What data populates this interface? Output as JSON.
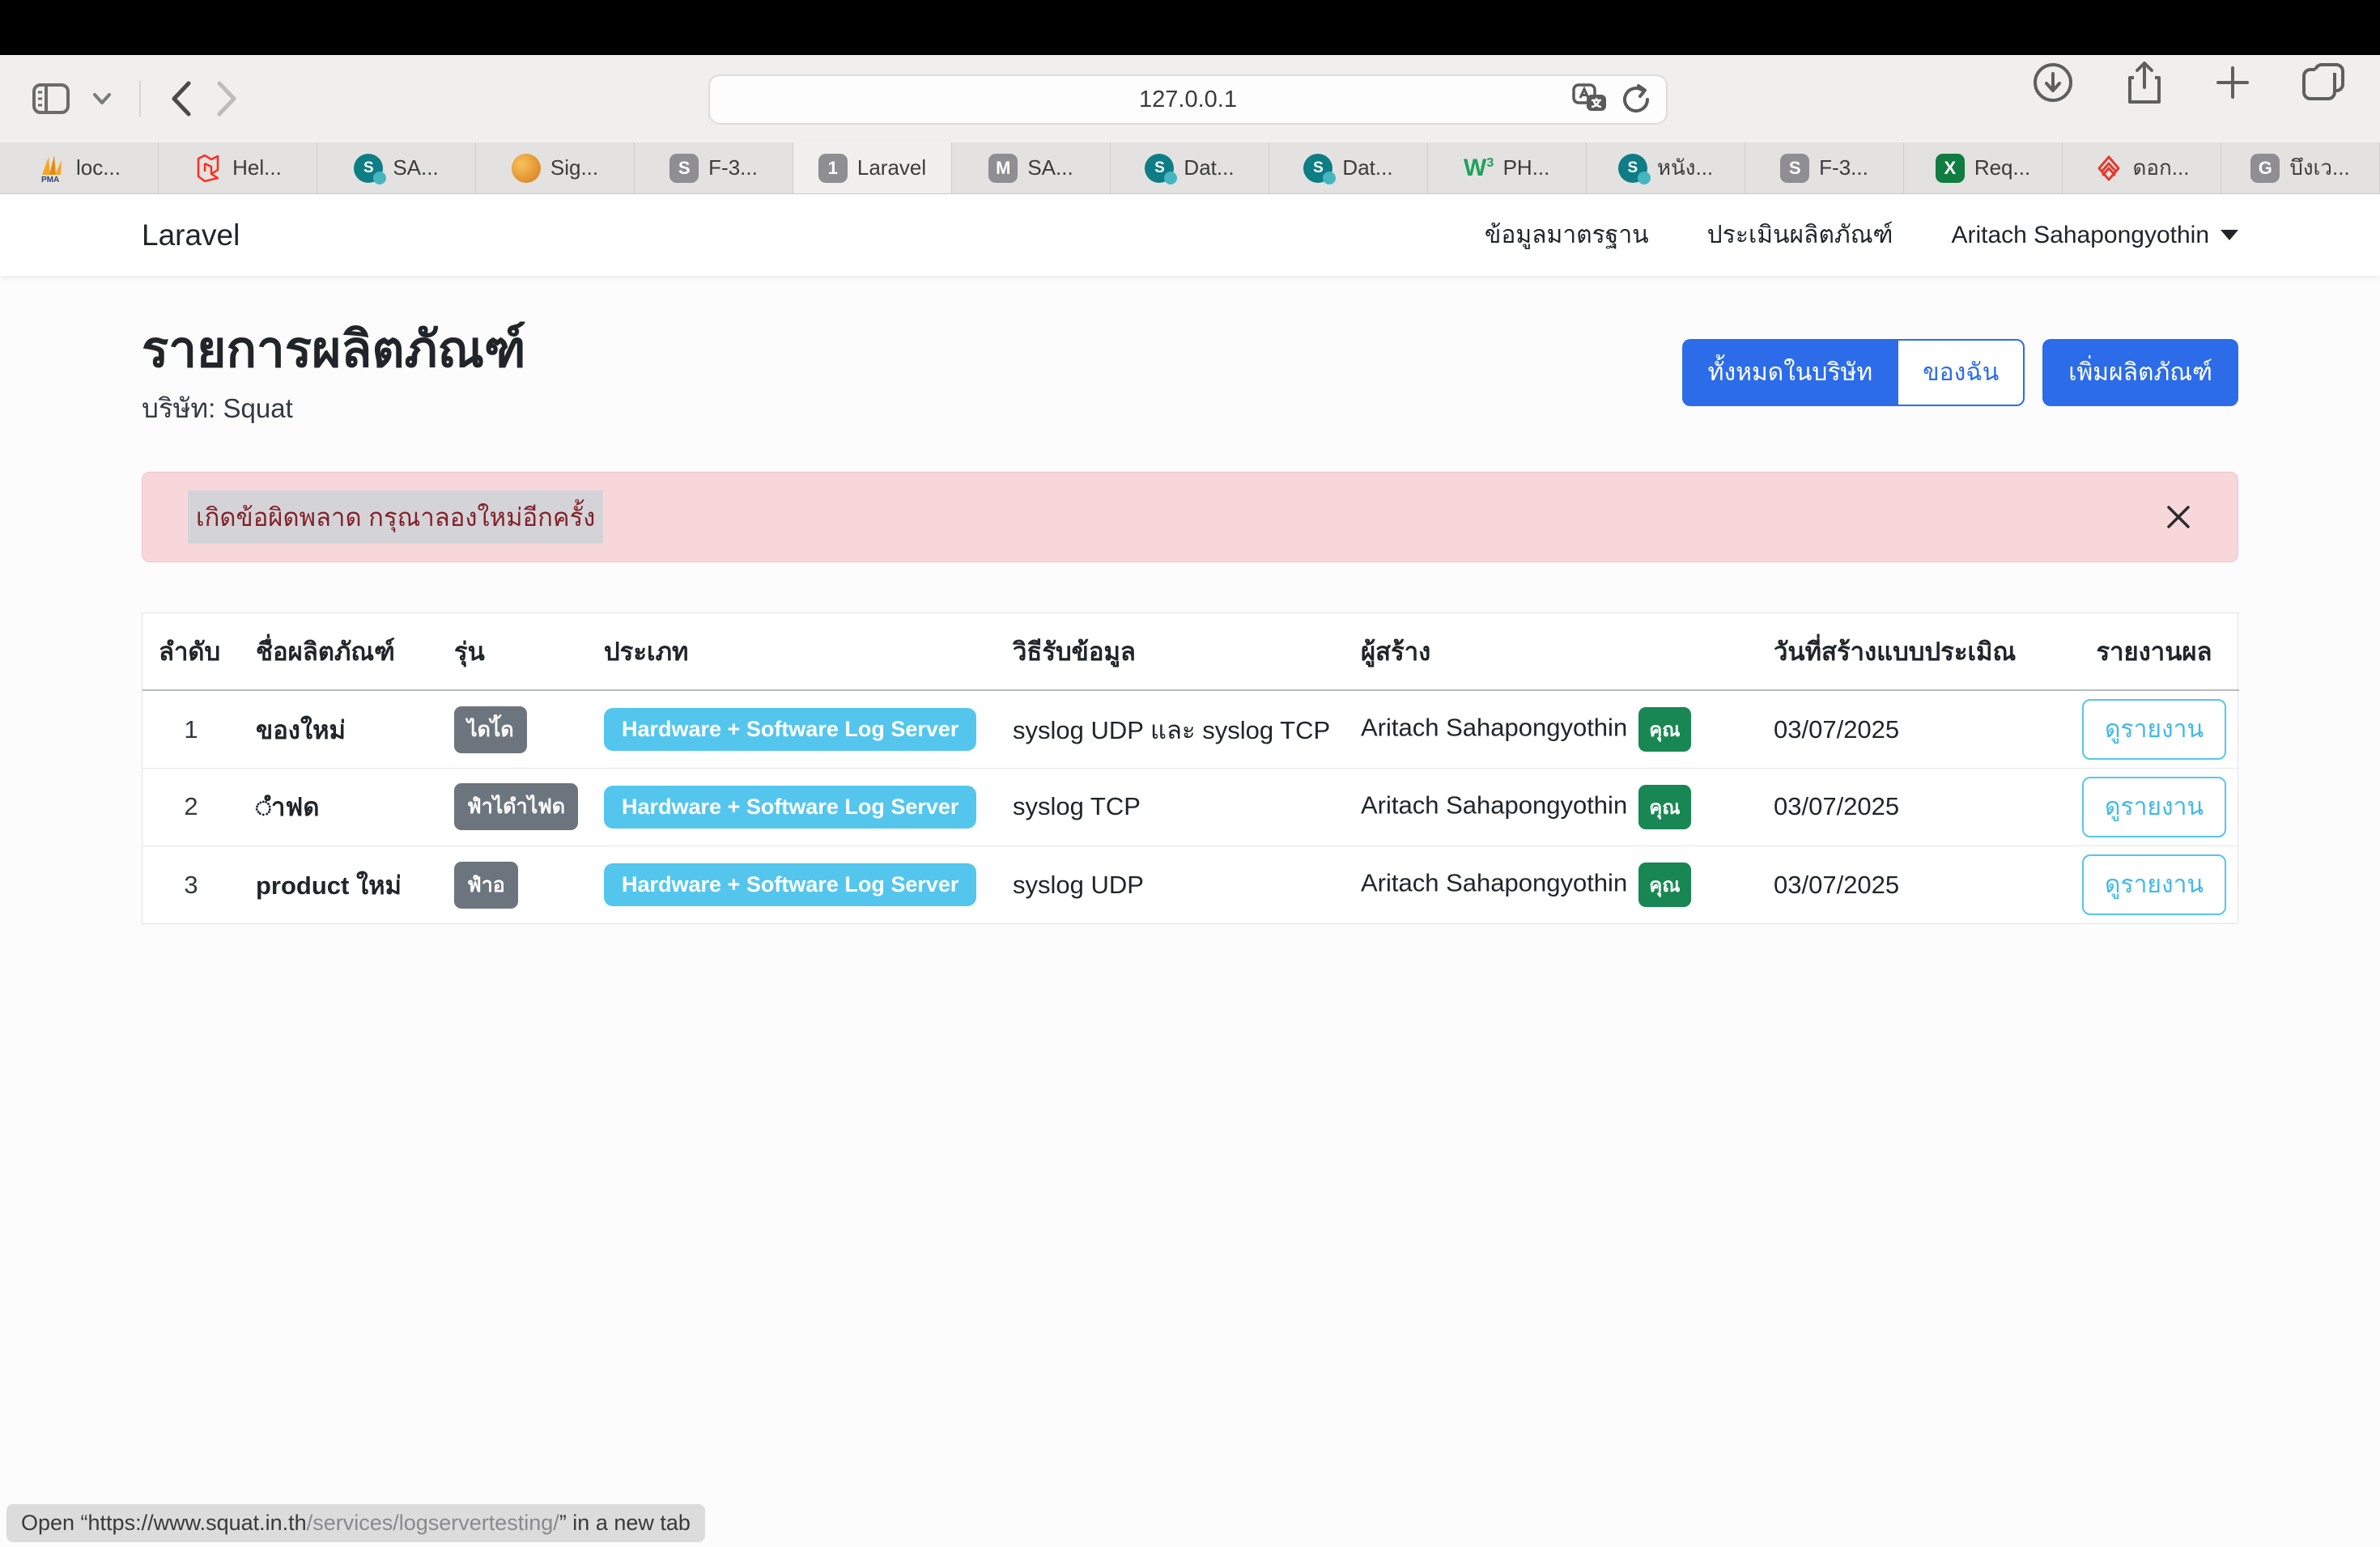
{
  "browser": {
    "url": "127.0.0.1",
    "tabs": [
      {
        "label": "loc...",
        "icon": "pma",
        "active": false
      },
      {
        "label": "Hel...",
        "icon": "laravel",
        "active": false
      },
      {
        "label": "SA...",
        "icon": "sharepoint",
        "active": false
      },
      {
        "label": "Sig...",
        "icon": "orange",
        "active": false
      },
      {
        "label": "F-3...",
        "icon": "gray-s",
        "active": false
      },
      {
        "label": "Laravel",
        "icon": "gray-1",
        "active": true
      },
      {
        "label": "SA...",
        "icon": "gray-m",
        "active": false
      },
      {
        "label": "Dat...",
        "icon": "sharepoint",
        "active": false
      },
      {
        "label": "Dat...",
        "icon": "sharepoint",
        "active": false
      },
      {
        "label": "PH...",
        "icon": "w3",
        "active": false
      },
      {
        "label": "หนัง...",
        "icon": "sharepoint",
        "active": false
      },
      {
        "label": "F-3...",
        "icon": "gray-s",
        "active": false
      },
      {
        "label": "Req...",
        "icon": "excel",
        "active": false
      },
      {
        "label": "ดอก...",
        "icon": "red-mark",
        "active": false
      },
      {
        "label": "บึงเว...",
        "icon": "gray-g",
        "active": false
      }
    ],
    "status_bar": {
      "prefix": "Open “https://www.squat.in.th",
      "link": "/services/logservertesting/",
      "suffix": "” in a new tab"
    }
  },
  "nav": {
    "brand": "Laravel",
    "items": [
      {
        "label": "ข้อมูลมาตรฐาน"
      },
      {
        "label": "ประเมินผลิตภัณฑ์"
      }
    ],
    "user": "Aritach Sahapongyothin"
  },
  "page": {
    "title": "รายการผลิตภัณฑ์",
    "company": "บริษัท: Squat",
    "buttons": {
      "all_in_company": "ทั้งหมดในบริษัท",
      "mine": "ของฉัน",
      "add_product": "เพิ่มผลิตภัณฑ์"
    },
    "alert": {
      "message": "เกิดข้อผิดพลาด กรุณาลองใหม่อีกครั้ง"
    },
    "table": {
      "headers": [
        "ลำดับ",
        "ชื่อผลิตภัณฑ์",
        "รุ่น",
        "ประเภท",
        "วิธีรับข้อมูล",
        "ผู้สร้าง",
        "วันที่สร้างแบบประเมิณ",
        "รายงานผล"
      ],
      "rows": [
        {
          "index": "1",
          "name": "ของใหม่",
          "model": "ไดไ้ด",
          "type": "Hardware + Software Log Server",
          "method": "syslog UDP และ syslog TCP",
          "creator": "Aritach Sahapongyothin",
          "creator_badge": "คุณ",
          "date": "03/07/2025",
          "report_label": "ดูรายงาน"
        },
        {
          "index": "2",
          "name": "◌ำฟด",
          "model": "ฟำไดำไฟด",
          "type": "Hardware + Software Log Server",
          "method": "syslog TCP",
          "creator": "Aritach Sahapongyothin",
          "creator_badge": "คุณ",
          "date": "03/07/2025",
          "report_label": "ดูรายงาน"
        },
        {
          "index": "3",
          "name": "product ใหม่",
          "model": "ฟำอ",
          "type": "Hardware + Software Log Server",
          "method": "syslog UDP",
          "creator": "Aritach Sahapongyothin",
          "creator_badge": "คุณ",
          "date": "03/07/2025",
          "report_label": "ดูรายงาน"
        }
      ]
    }
  },
  "colors": {
    "primary_blue": "#2c6ce8",
    "type_badge_cyan": "#54c6ee",
    "model_badge_gray": "#6c757d",
    "creator_badge_green": "#198754",
    "alert_bg": "#f8d7da",
    "alert_text": "#842029"
  }
}
